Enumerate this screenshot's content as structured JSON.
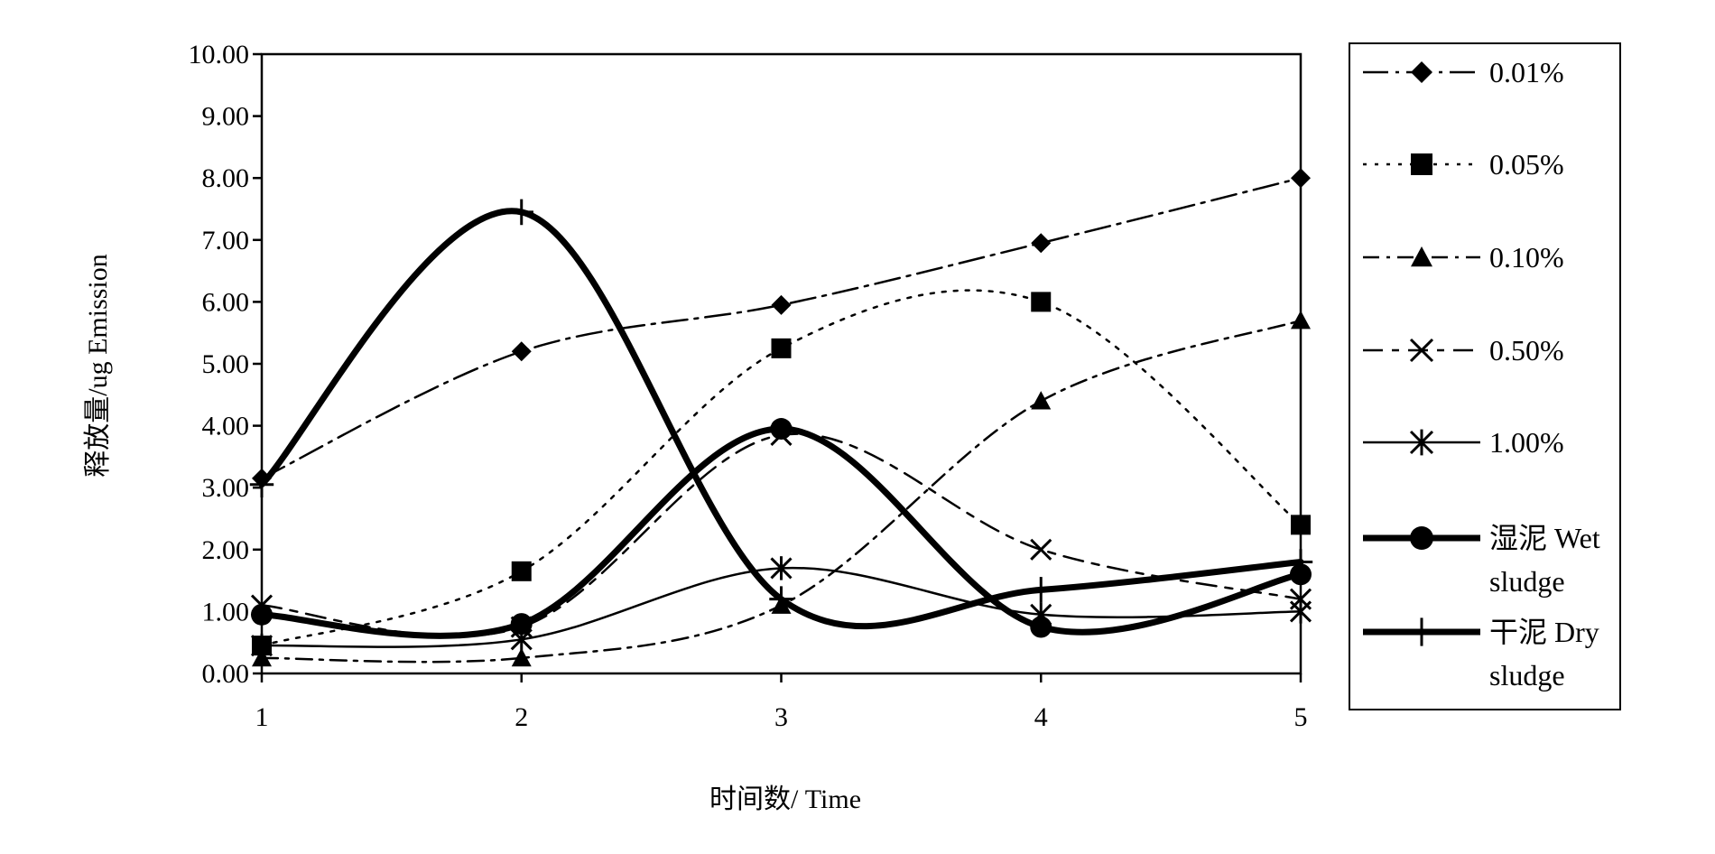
{
  "chart_data": {
    "type": "line",
    "xlabel": "时间数/ Time",
    "ylabel": "释放量/ug Emission",
    "x": [
      1,
      2,
      3,
      4,
      5
    ],
    "xlim": [
      1,
      5
    ],
    "ylim": [
      0,
      10
    ],
    "y_ticks": [
      "0.00",
      "1.00",
      "2.00",
      "3.00",
      "4.00",
      "5.00",
      "6.00",
      "7.00",
      "8.00",
      "9.00",
      "10.00"
    ],
    "x_ticks": [
      "1",
      "2",
      "3",
      "4",
      "5"
    ],
    "grid": false,
    "legend_position": "right",
    "series": [
      {
        "name": "0.01%",
        "values": [
          3.15,
          5.2,
          5.95,
          6.95,
          8.0
        ],
        "marker": "diamond",
        "dash": "long-dash-dot",
        "color": "#000000"
      },
      {
        "name": "0.05%",
        "values": [
          0.45,
          1.65,
          5.25,
          6.0,
          2.4
        ],
        "marker": "square",
        "dash": "dot",
        "color": "#000000"
      },
      {
        "name": "0.10%",
        "values": [
          0.25,
          0.25,
          1.1,
          4.4,
          5.7
        ],
        "marker": "triangle",
        "dash": "dash-dot",
        "color": "#000000"
      },
      {
        "name": "0.50%",
        "values": [
          1.1,
          0.75,
          3.85,
          2.0,
          1.2
        ],
        "marker": "x",
        "dash": "long-dash-short",
        "color": "#000000"
      },
      {
        "name": "1.00%",
        "values": [
          0.45,
          0.55,
          1.7,
          0.95,
          1.0
        ],
        "marker": "star",
        "dash": "solid-thin",
        "color": "#000000"
      },
      {
        "name": "湿泥 Wet sludge",
        "name_lines": [
          "湿泥 Wet",
          "sludge"
        ],
        "values": [
          0.95,
          0.8,
          3.95,
          0.75,
          1.6
        ],
        "marker": "circle",
        "dash": "solid-thick",
        "color": "#000000"
      },
      {
        "name": "干泥 Dry sludge",
        "name_lines": [
          "干泥 Dry",
          "sludge"
        ],
        "values": [
          3.05,
          7.45,
          1.2,
          1.35,
          1.8
        ],
        "marker": "plus",
        "dash": "solid-thick",
        "color": "#000000"
      }
    ]
  }
}
